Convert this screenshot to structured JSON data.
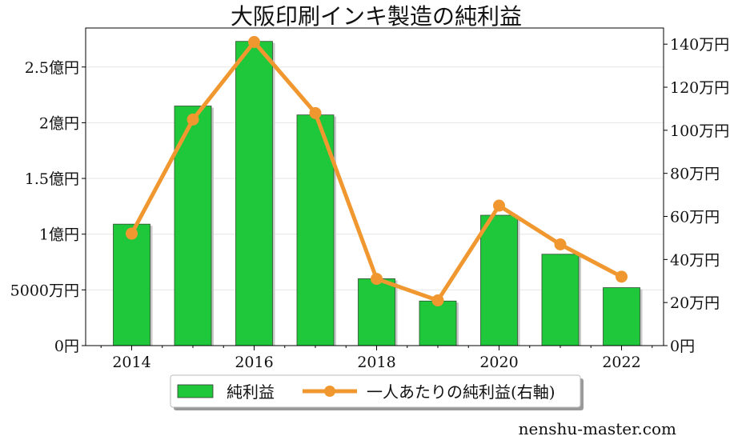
{
  "chart_data": {
    "type": "bar",
    "title": "大阪印刷インキ製造の純利益",
    "categories": [
      "2014",
      "2015",
      "2016",
      "2017",
      "2018",
      "2019",
      "2020",
      "2021",
      "2022"
    ],
    "x_tick_labels": [
      "2014",
      "2016",
      "2018",
      "2020",
      "2022"
    ],
    "series": [
      {
        "name": "純利益",
        "type": "bar",
        "axis": "left",
        "color": "#1ec83a",
        "values": [
          109000000,
          215000000,
          273000000,
          207000000,
          60000000,
          40000000,
          117000000,
          82000000,
          52000000
        ]
      },
      {
        "name": "一人あたりの純利益(右軸)",
        "type": "line",
        "axis": "right",
        "color": "#f0982f",
        "values": [
          520000,
          1050000,
          1410000,
          1080000,
          310000,
          210000,
          650000,
          470000,
          320000
        ]
      }
    ],
    "y_left": {
      "min": 0,
      "max": 285000000,
      "ticks": [
        0,
        50000000,
        100000000,
        150000000,
        200000000,
        250000000
      ],
      "tick_labels": [
        "0円",
        "5000万円",
        "1億円",
        "1.5億円",
        "2億円",
        "2.5億円"
      ]
    },
    "y_right": {
      "min": 0,
      "max": 1475000,
      "ticks": [
        0,
        200000,
        400000,
        600000,
        800000,
        1000000,
        1200000,
        1400000
      ],
      "tick_labels": [
        "0円",
        "20万円",
        "40万円",
        "60万円",
        "80万円",
        "100万円",
        "120万円",
        "140万円"
      ]
    },
    "grid": true,
    "legend_position": "bottom-center"
  },
  "credit": "nenshu-master.com"
}
